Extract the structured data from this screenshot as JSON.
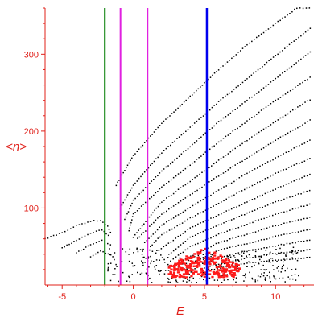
{
  "chart_data": {
    "type": "scatter",
    "title": "",
    "xlabel": "E",
    "ylabel": "<n>",
    "xlim": [
      -6.2,
      12.7
    ],
    "ylim": [
      0,
      360
    ],
    "x_ticks": [
      -5,
      0,
      5,
      10
    ],
    "y_ticks": [
      100,
      200,
      300
    ],
    "grid": false,
    "colors": {
      "axes": "#e0201a",
      "points": "#000000",
      "highlight_points": "#ff1a1a",
      "line_green": "#007a00",
      "line_magenta": "#e020e0",
      "line_blue": "#0000ee"
    },
    "vertical_lines": [
      {
        "x": -2.0,
        "color": "#007a00"
      },
      {
        "x": -0.9,
        "color": "#e020e0"
      },
      {
        "x": 1.0,
        "color": "#e020e0"
      },
      {
        "x": 5.2,
        "color": "#0000ee"
      }
    ],
    "series": [
      {
        "values": [
          [
            -1.2,
            130
          ],
          [
            0,
            168
          ],
          [
            2,
            210
          ],
          [
            4,
            245
          ],
          [
            6,
            280
          ],
          [
            8,
            312
          ],
          [
            10,
            340
          ],
          [
            11.5,
            360
          ],
          [
            12.6,
            360
          ]
        ]
      },
      {
        "values": [
          [
            -0.9,
            100
          ],
          [
            0,
            130
          ],
          [
            2,
            172
          ],
          [
            4,
            205
          ],
          [
            6,
            238
          ],
          [
            8,
            268
          ],
          [
            10,
            298
          ],
          [
            12.6,
            336
          ]
        ]
      },
      {
        "values": [
          [
            -0.6,
            85
          ],
          [
            0,
            110
          ],
          [
            2,
            148
          ],
          [
            4,
            180
          ],
          [
            6,
            212
          ],
          [
            8,
            240
          ],
          [
            10,
            268
          ],
          [
            12.6,
            305
          ]
        ]
      },
      {
        "values": [
          [
            -0.3,
            70
          ],
          [
            0,
            92
          ],
          [
            2,
            127
          ],
          [
            4,
            156
          ],
          [
            6,
            186
          ],
          [
            8,
            213
          ],
          [
            10,
            240
          ],
          [
            12.6,
            272
          ]
        ]
      },
      {
        "values": [
          [
            0,
            62
          ],
          [
            2,
            108
          ],
          [
            4,
            135
          ],
          [
            6,
            162
          ],
          [
            8,
            188
          ],
          [
            10,
            213
          ],
          [
            12.6,
            243
          ]
        ]
      },
      {
        "values": [
          [
            0.3,
            60
          ],
          [
            2,
            92
          ],
          [
            4,
            117
          ],
          [
            6,
            142
          ],
          [
            8,
            165
          ],
          [
            10,
            188
          ],
          [
            12.6,
            216
          ]
        ]
      },
      {
        "values": [
          [
            0.8,
            55
          ],
          [
            2,
            78
          ],
          [
            4,
            101
          ],
          [
            6,
            123
          ],
          [
            8,
            145
          ],
          [
            10,
            165
          ],
          [
            12.6,
            190
          ]
        ]
      },
      {
        "values": [
          [
            1.2,
            50
          ],
          [
            2,
            65
          ],
          [
            4,
            87
          ],
          [
            6,
            106
          ],
          [
            8,
            126
          ],
          [
            10,
            145
          ],
          [
            12.6,
            166
          ]
        ]
      },
      {
        "values": [
          [
            1.8,
            45
          ],
          [
            4,
            74
          ],
          [
            6,
            91
          ],
          [
            8,
            108
          ],
          [
            10,
            125
          ],
          [
            12.6,
            145
          ]
        ]
      },
      {
        "values": [
          [
            2.5,
            40
          ],
          [
            4,
            62
          ],
          [
            6,
            78
          ],
          [
            8,
            93
          ],
          [
            10,
            108
          ],
          [
            12.6,
            124
          ]
        ]
      },
      {
        "values": [
          [
            3,
            36
          ],
          [
            4,
            50
          ],
          [
            6,
            66
          ],
          [
            8,
            79
          ],
          [
            10,
            92
          ],
          [
            12.6,
            106
          ]
        ]
      },
      {
        "values": [
          [
            3.5,
            32
          ],
          [
            6,
            55
          ],
          [
            8,
            66
          ],
          [
            10,
            77
          ],
          [
            12.6,
            89
          ]
        ]
      },
      {
        "values": [
          [
            4,
            28
          ],
          [
            6,
            45
          ],
          [
            8,
            54
          ],
          [
            10,
            63
          ],
          [
            12.6,
            73
          ]
        ]
      },
      {
        "values": [
          [
            4.5,
            25
          ],
          [
            6,
            36
          ],
          [
            8,
            44
          ],
          [
            10,
            51
          ],
          [
            12.6,
            59
          ]
        ]
      },
      {
        "values": [
          [
            5,
            22
          ],
          [
            8,
            35
          ],
          [
            10,
            41
          ],
          [
            12.6,
            46
          ]
        ]
      },
      {
        "values": [
          [
            5.5,
            20
          ],
          [
            8,
            28
          ],
          [
            10,
            32
          ],
          [
            12.6,
            36
          ]
        ]
      },
      {
        "values": [
          [
            -6.2,
            60
          ],
          [
            -5,
            68
          ],
          [
            -4,
            77
          ],
          [
            -3,
            83
          ],
          [
            -2.3,
            84
          ],
          [
            -1.8,
            76
          ],
          [
            -1.5,
            65
          ]
        ]
      },
      {
        "values": [
          [
            -5,
            48
          ],
          [
            -4,
            58
          ],
          [
            -3,
            67
          ],
          [
            -2.2,
            72
          ],
          [
            -1.6,
            62
          ]
        ]
      },
      {
        "values": [
          [
            -4,
            42
          ],
          [
            -3,
            52
          ],
          [
            -2.2,
            58
          ],
          [
            -1.4,
            50
          ]
        ]
      },
      {
        "values": [
          [
            -3,
            36
          ],
          [
            -2.3,
            44
          ],
          [
            -1.4,
            38
          ]
        ]
      }
    ],
    "highlight_region": {
      "x": [
        2.5,
        7.5
      ],
      "y": [
        10,
        50
      ]
    }
  }
}
